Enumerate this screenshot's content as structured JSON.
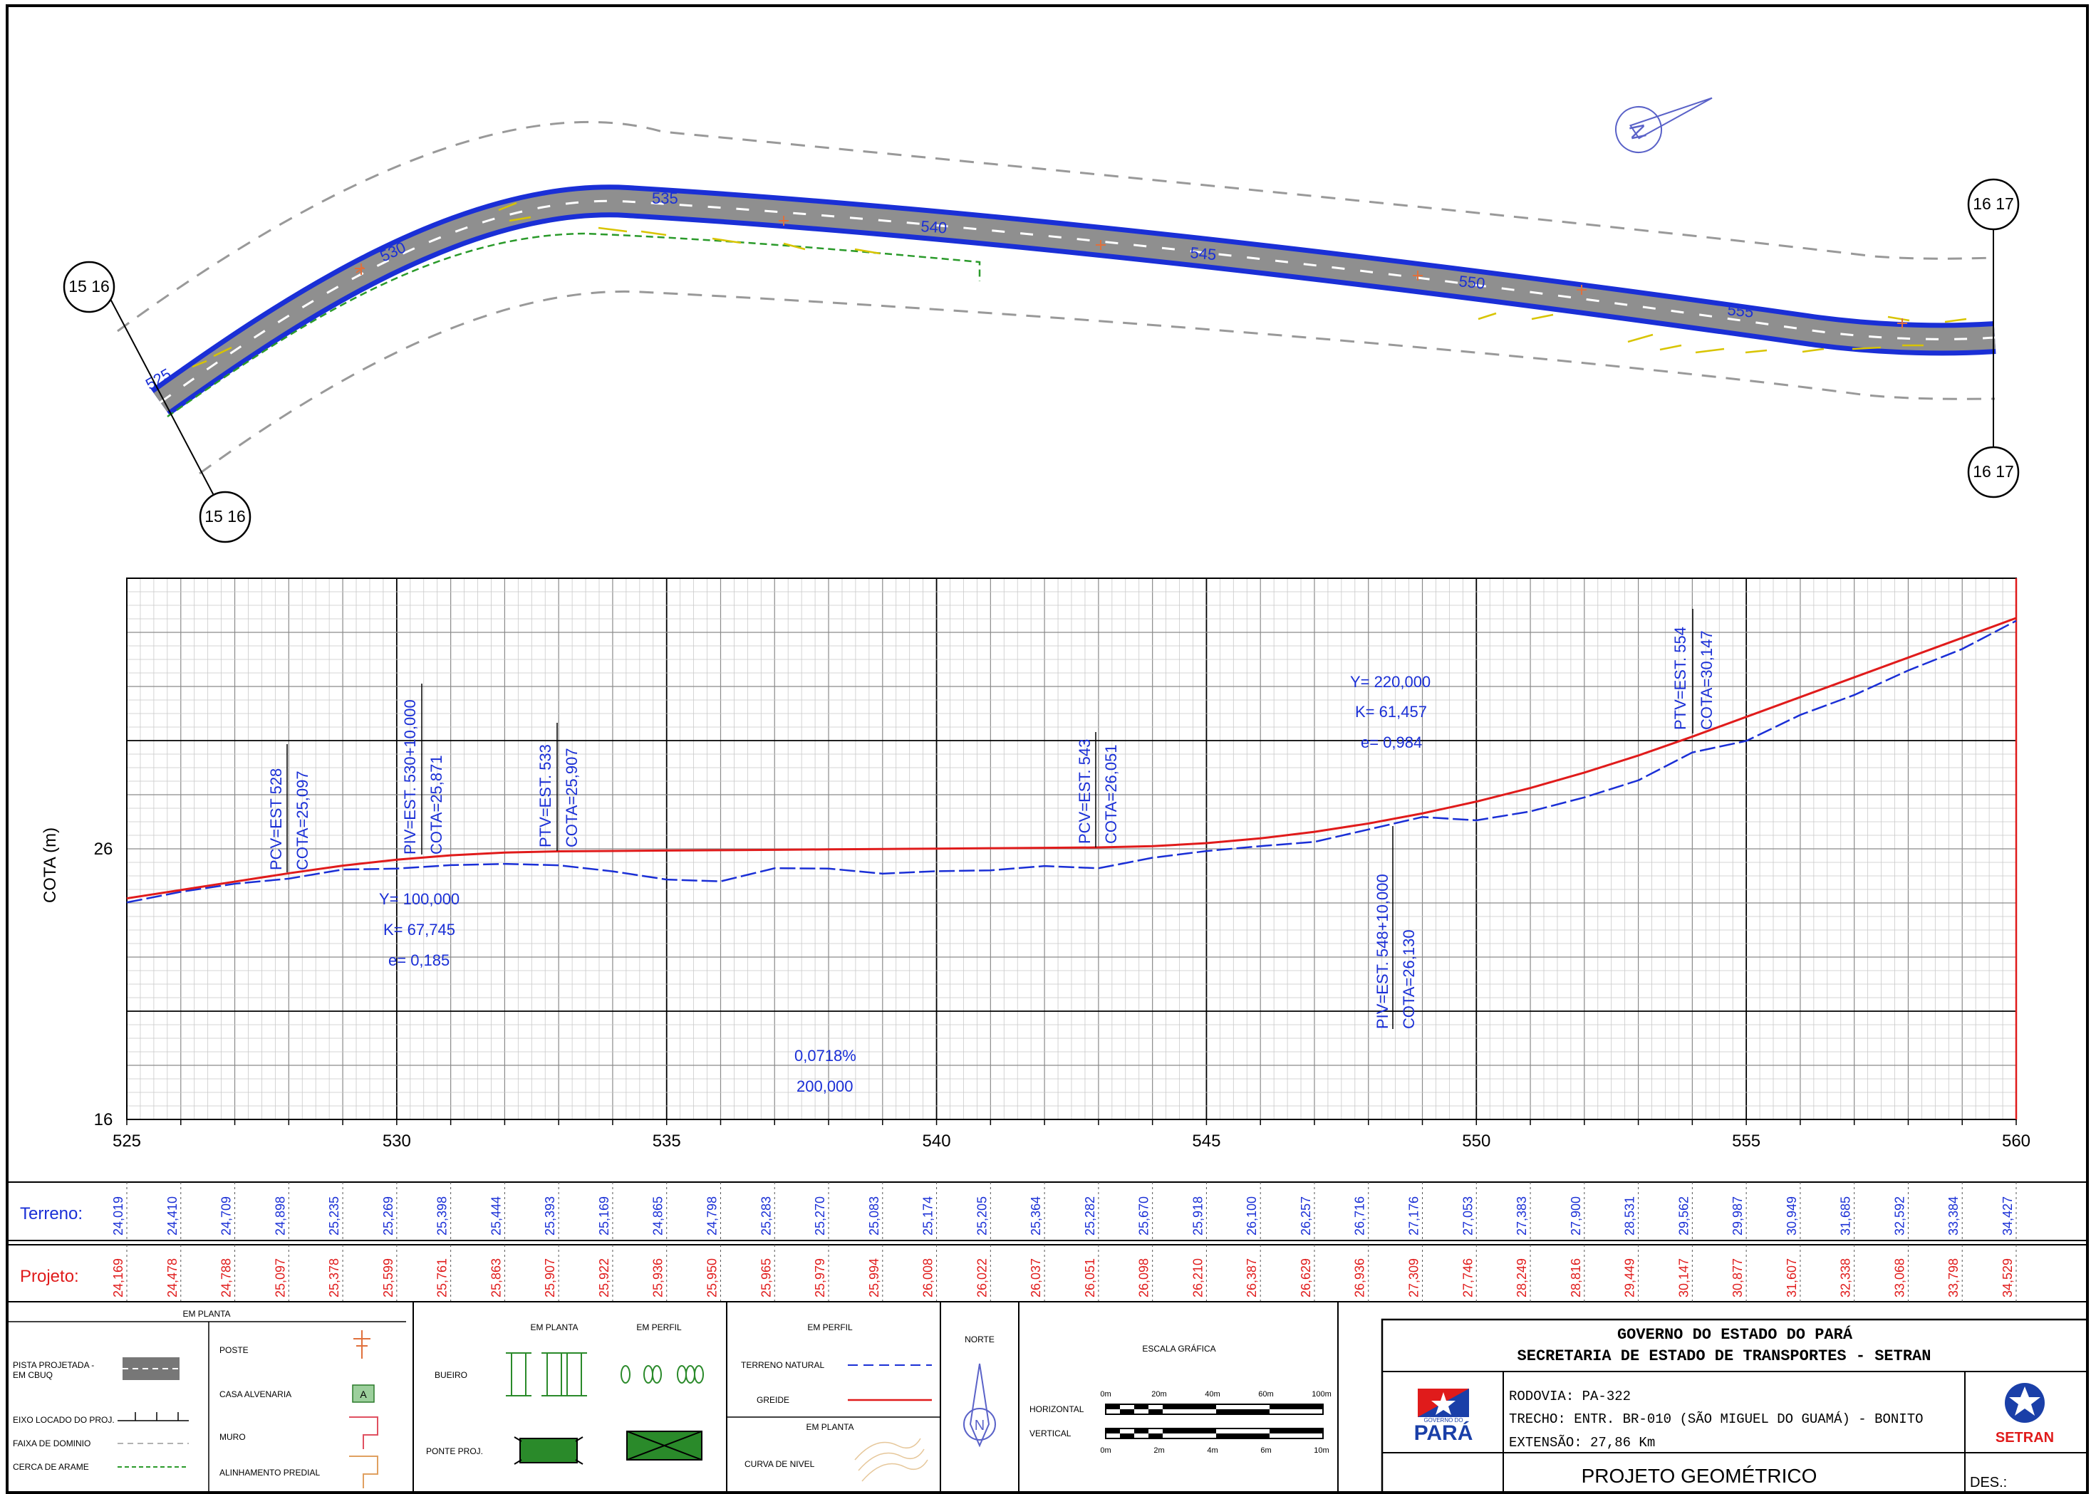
{
  "plan": {
    "station_labels": [
      "525",
      "530",
      "535",
      "540",
      "545",
      "550",
      "555"
    ],
    "match_lines": [
      {
        "text": "15 16"
      },
      {
        "text": "15 16"
      },
      {
        "text": "16 17"
      },
      {
        "text": "16 17"
      }
    ],
    "north_arrow_letter": "N"
  },
  "profile": {
    "ylabel": "COTA (m)",
    "y_ticks": [
      "26",
      "16"
    ],
    "x_ticks": [
      "525",
      "530",
      "535",
      "540",
      "545",
      "550",
      "555",
      "560"
    ],
    "annotations": {
      "pcv528": "PCV=EST 528",
      "cota528": "COTA=25,097",
      "piv530": "PIV=EST. 530+10,000",
      "cota530": "COTA=25,871",
      "ptv533": "PTV=EST. 533",
      "cota533": "COTA=25,907",
      "pcv543": "PCV=EST. 543",
      "cota543": "COTA=26,051",
      "piv548": "PIV=EST. 548+10,000",
      "cota548": "COTA=26,130",
      "ptv554": "PTV=EST. 554",
      "cota554": "COTA=30,147",
      "curve1_y": "Y= 100,000",
      "curve1_k": "K= 67,745",
      "curve1_e": "e= 0,185",
      "curve2_y": "Y= 220,000",
      "curve2_k": "K= 61,457",
      "curve2_e": "e= 0,984",
      "grade": "0,0718%",
      "grade_len": "200,000"
    }
  },
  "chart_data": {
    "type": "line",
    "xlabel": "",
    "ylabel": "COTA (m)",
    "x": [
      525,
      526,
      527,
      528,
      529,
      530,
      531,
      532,
      533,
      534,
      535,
      536,
      537,
      538,
      539,
      540,
      541,
      542,
      543,
      544,
      545,
      546,
      547,
      548,
      549,
      550,
      551,
      552,
      553,
      554,
      555,
      556,
      557,
      558,
      559,
      560
    ],
    "series": [
      {
        "name": "Terreno",
        "color": "#1a2fd6",
        "values": [
          24.019,
          24.41,
          24.709,
          24.898,
          25.235,
          25.269,
          25.398,
          25.444,
          25.393,
          25.169,
          24.865,
          24.798,
          25.283,
          25.27,
          25.083,
          25.174,
          25.205,
          25.364,
          25.282,
          25.67,
          25.918,
          26.1,
          26.257,
          26.716,
          27.176,
          27.053,
          27.383,
          27.9,
          28.531,
          29.562,
          29.987,
          30.949,
          31.685,
          32.592,
          33.384,
          34.427
        ]
      },
      {
        "name": "Projeto",
        "color": "#e01b1b",
        "values": [
          24.169,
          24.478,
          24.788,
          25.097,
          25.378,
          25.599,
          25.761,
          25.863,
          25.907,
          25.922,
          25.936,
          25.95,
          25.965,
          25.979,
          25.994,
          26.008,
          26.022,
          26.037,
          26.051,
          26.098,
          26.21,
          26.387,
          26.629,
          26.936,
          27.309,
          27.746,
          28.249,
          28.816,
          29.449,
          30.147,
          30.877,
          31.607,
          32.338,
          33.068,
          33.798,
          34.529
        ]
      }
    ],
    "xlim": [
      525,
      560
    ],
    "ylim": [
      16,
      36
    ],
    "grid": true
  },
  "table": {
    "terreno_label": "Terreno:",
    "projeto_label": "Projeto:",
    "terreno": [
      "24,019",
      "24,410",
      "24,709",
      "24,898",
      "25,235",
      "25,269",
      "25,398",
      "25,444",
      "25,393",
      "25,169",
      "24,865",
      "24,798",
      "25,283",
      "25,270",
      "25,083",
      "25,174",
      "25,205",
      "25,364",
      "25,282",
      "25,670",
      "25,918",
      "26,100",
      "26,257",
      "26,716",
      "27,176",
      "27,053",
      "27,383",
      "27,900",
      "28,531",
      "29,562",
      "29,987",
      "30,949",
      "31,685",
      "32,592",
      "33,384",
      "34,427"
    ],
    "projeto": [
      "24,169",
      "24,478",
      "24,788",
      "25,097",
      "25,378",
      "25,599",
      "25,761",
      "25,863",
      "25,907",
      "25,922",
      "25,936",
      "25,950",
      "25,965",
      "25,979",
      "25,994",
      "26,008",
      "26,022",
      "26,037",
      "26,051",
      "26,098",
      "26,210",
      "26,387",
      "26,629",
      "26,936",
      "27,309",
      "27,746",
      "28,249",
      "28,816",
      "29,449",
      "30,147",
      "30,877",
      "31,607",
      "32,338",
      "33,068",
      "33,798",
      "34,529"
    ]
  },
  "legend": {
    "em_planta": "EM PLANTA",
    "pista_1": "PISTA PROJETADA -",
    "pista_2": "EM CBUQ",
    "eixo": "EIXO LOCADO DO PROJ.",
    "faixa": "FAIXA DE DOMINIO",
    "cerca": "CERCA DE ARAME",
    "poste": "POSTE",
    "casa": "CASA ALVENARIA",
    "casa_mark": "A",
    "muro": "MURO",
    "alinhamento": "ALINHAMENTO PREDIAL",
    "col2_planta": "EM PLANTA",
    "col2_perfil": "EM PERFIL",
    "bueiro": "BUEIRO",
    "ponte": "PONTE PROJ.",
    "col3_perfil": "EM PERFIL",
    "terreno_natural": "TERRENO NATURAL",
    "greide": "GREIDE",
    "col3_planta": "EM PLANTA",
    "curva": "CURVA DE NIVEL",
    "norte": "NORTE",
    "north_letter": "N",
    "escala": "ESCALA GRÁFICA",
    "horizontal": "HORIZONTAL",
    "vertical": "VERTICAL",
    "h_ticks": [
      "0m",
      "20m",
      "40m",
      "60m",
      "100m"
    ],
    "v_ticks": [
      "0m",
      "2m",
      "4m",
      "6m",
      "10m"
    ]
  },
  "title_block": {
    "gov": "GOVERNO DO ESTADO DO PARÁ",
    "sec": "SECRETARIA DE ESTADO DE TRANSPORTES - SETRAN",
    "rodovia": "RODOVIA: PA-322",
    "trecho": "TRECHO: ENTR. BR-010 (SÃO MIGUEL DO GUAMÁ) - BONITO",
    "extensao": "EXTENSÃO: 27,86 Km",
    "projeto": "PROJETO GEOMÉTRICO",
    "des": "DES.:",
    "logo_gov_small": "GOVERNO DO",
    "logo_para": "PARÁ",
    "logo_setran": "SETRAN"
  },
  "colors": {
    "terreno": "#1a2fd6",
    "projeto": "#e01b1b",
    "road_edge": "#1a2fd6",
    "road_fill": "#8c8c8c",
    "label_blue": "#1a2fd6"
  }
}
